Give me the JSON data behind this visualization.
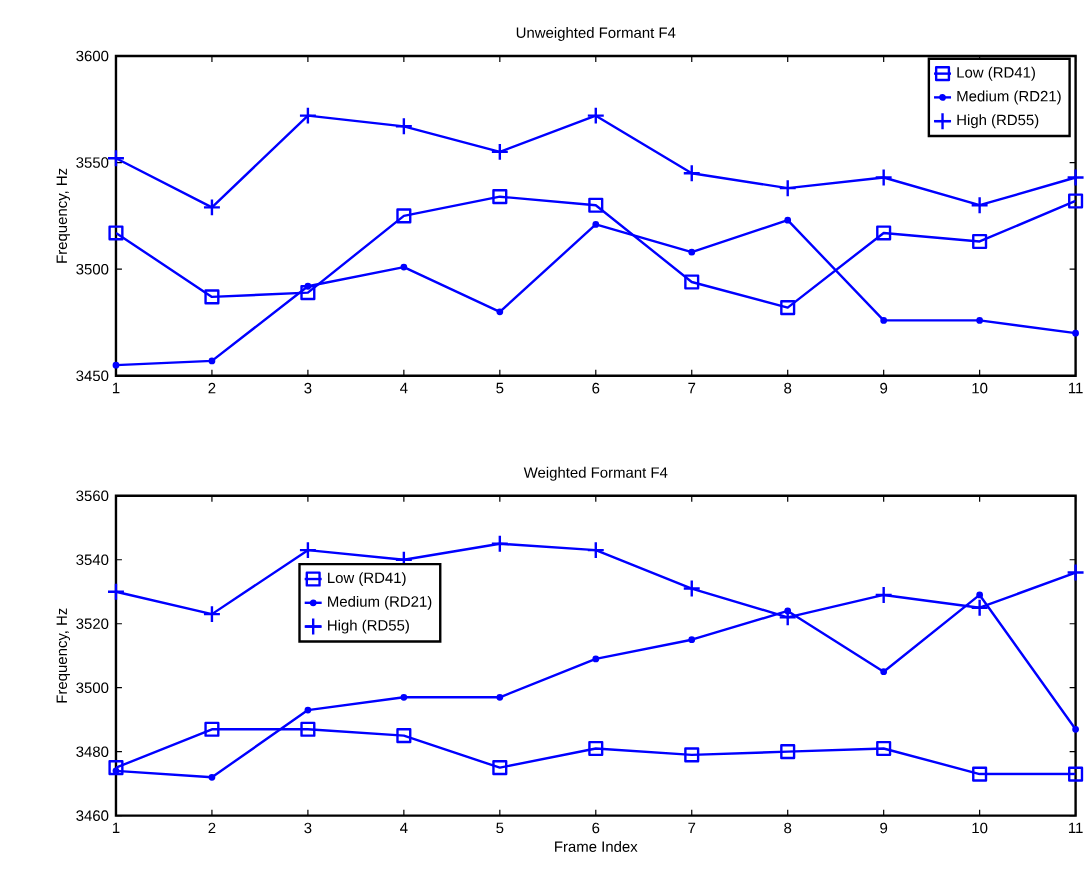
{
  "chart_data": [
    {
      "type": "line",
      "title": "Unweighted Formant F4",
      "ylabel": "Frequency, Hz",
      "xlim": [
        1,
        11
      ],
      "xticks": [
        1,
        2,
        3,
        4,
        5,
        6,
        7,
        8,
        9,
        10,
        11
      ],
      "ylim": [
        3450,
        3600
      ],
      "yticks": [
        3450,
        3500,
        3550,
        3600
      ],
      "x": [
        1,
        2,
        3,
        4,
        5,
        6,
        7,
        8,
        9,
        10,
        11
      ],
      "legend": "top right",
      "grid": false,
      "line_style": "solid",
      "series": [
        {
          "name": "Low (RD41)",
          "color": "#0000ff",
          "marker": "square",
          "values": [
            3517,
            3487,
            3489,
            3525,
            3534,
            3530,
            3494,
            3482,
            3517,
            3513,
            3532
          ]
        },
        {
          "name": "Medium (RD21)",
          "color": "#0000ff",
          "marker": "circle",
          "values": [
            3455,
            3457,
            3492,
            3501,
            3480,
            3521,
            3508,
            3523,
            3476,
            3476,
            3470
          ]
        },
        {
          "name": "High (RD55)",
          "color": "#0000ff",
          "marker": "cross",
          "values": [
            3552,
            3529,
            3572,
            3567,
            3555,
            3572,
            3545,
            3538,
            3543,
            3530,
            3543
          ]
        }
      ]
    },
    {
      "type": "line",
      "title": "Weighted Formant F4",
      "xlabel": "Frame Index",
      "ylabel": "Frequency, Hz",
      "xlim": [
        1,
        11
      ],
      "xticks": [
        1,
        2,
        3,
        4,
        5,
        6,
        7,
        8,
        9,
        10,
        11
      ],
      "ylim": [
        3460,
        3560
      ],
      "yticks": [
        3460,
        3480,
        3500,
        3520,
        3540,
        3560
      ],
      "x": [
        1,
        2,
        3,
        4,
        5,
        6,
        7,
        8,
        9,
        10,
        11
      ],
      "legend": "top left",
      "grid": false,
      "line_style": "solid",
      "series": [
        {
          "name": "Low (RD41)",
          "color": "#0000ff",
          "marker": "square",
          "values": [
            3475,
            3487,
            3487,
            3485,
            3475,
            3481,
            3479,
            3480,
            3481,
            3473,
            3473
          ]
        },
        {
          "name": "Medium (RD21)",
          "color": "#0000ff",
          "marker": "circle",
          "values": [
            3474,
            3472,
            3493,
            3497,
            3497,
            3509,
            3515,
            3524,
            3505,
            3529,
            3487
          ]
        },
        {
          "name": "High (RD55)",
          "color": "#0000ff",
          "marker": "cross",
          "values": [
            3530,
            3523,
            3543,
            3540,
            3545,
            3543,
            3531,
            3522,
            3529,
            3525,
            3536
          ]
        }
      ]
    }
  ]
}
